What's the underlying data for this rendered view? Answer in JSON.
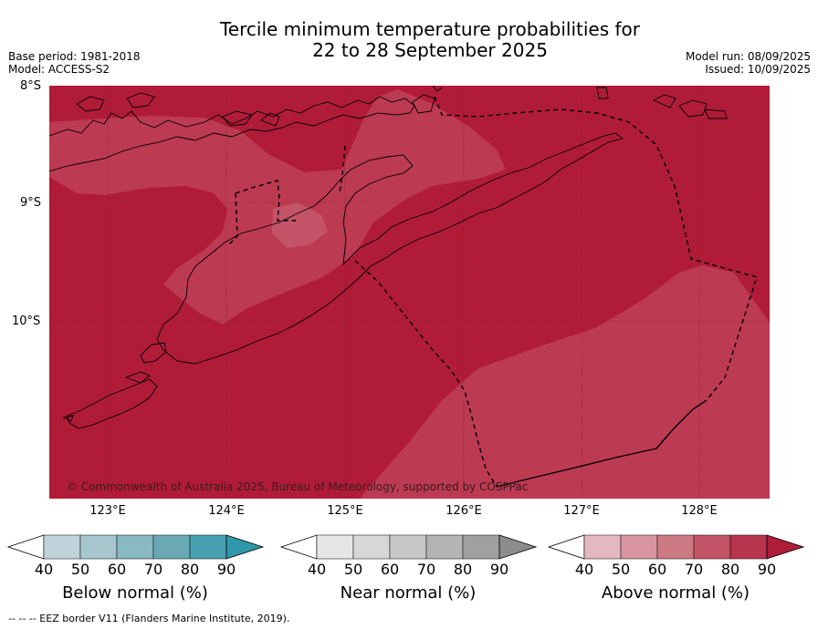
{
  "title": {
    "line1": "Tercile minimum temperature probabilities for",
    "line2": "22 to 28 September 2025"
  },
  "meta": {
    "base_period": "Base period: 1981-2018",
    "model": "Model: ACCESS-S2",
    "model_run": "Model run: 08/09/2025",
    "issued": "Issued: 10/09/2025"
  },
  "map": {
    "latitude_labels": [
      "8°S",
      "9°S",
      "10°S"
    ],
    "longitude_labels": [
      "123°E",
      "124°E",
      "125°E",
      "126°E",
      "127°E",
      "128°E"
    ],
    "credit": "© Commonwealth of Australia 2025, Bureau of Meteorology, supported by COSPPac",
    "colors": {
      "above_90": "#b01c38",
      "above_80": "#bc3a52",
      "above_70": "#c35468",
      "coast": "#000000",
      "grid": "#5a1a28"
    }
  },
  "colorbars": [
    {
      "label": "Below normal (%)",
      "ticks": [
        "40",
        "50",
        "60",
        "70",
        "80",
        "90"
      ],
      "colors": [
        "#bfd4da",
        "#a6c7cd",
        "#89b9c2",
        "#6aa9b4",
        "#48a0b0",
        "#2f99ab"
      ]
    },
    {
      "label": "Near normal (%)",
      "ticks": [
        "40",
        "50",
        "60",
        "70",
        "80",
        "90"
      ],
      "colors": [
        "#e6e6e6",
        "#d7d7d7",
        "#c8c8c8",
        "#b4b4b4",
        "#a0a0a0",
        "#8c8c8c"
      ]
    },
    {
      "label": "Above normal (%)",
      "ticks": [
        "40",
        "50",
        "60",
        "70",
        "80",
        "90"
      ],
      "colors": [
        "#e4b8c0",
        "#d9959f",
        "#cc7a84",
        "#c35468",
        "#b8354d",
        "#ae1c38"
      ]
    }
  ],
  "footnote": "--  --  -- EEZ border V11 (Flanders Marine Institute, 2019)."
}
